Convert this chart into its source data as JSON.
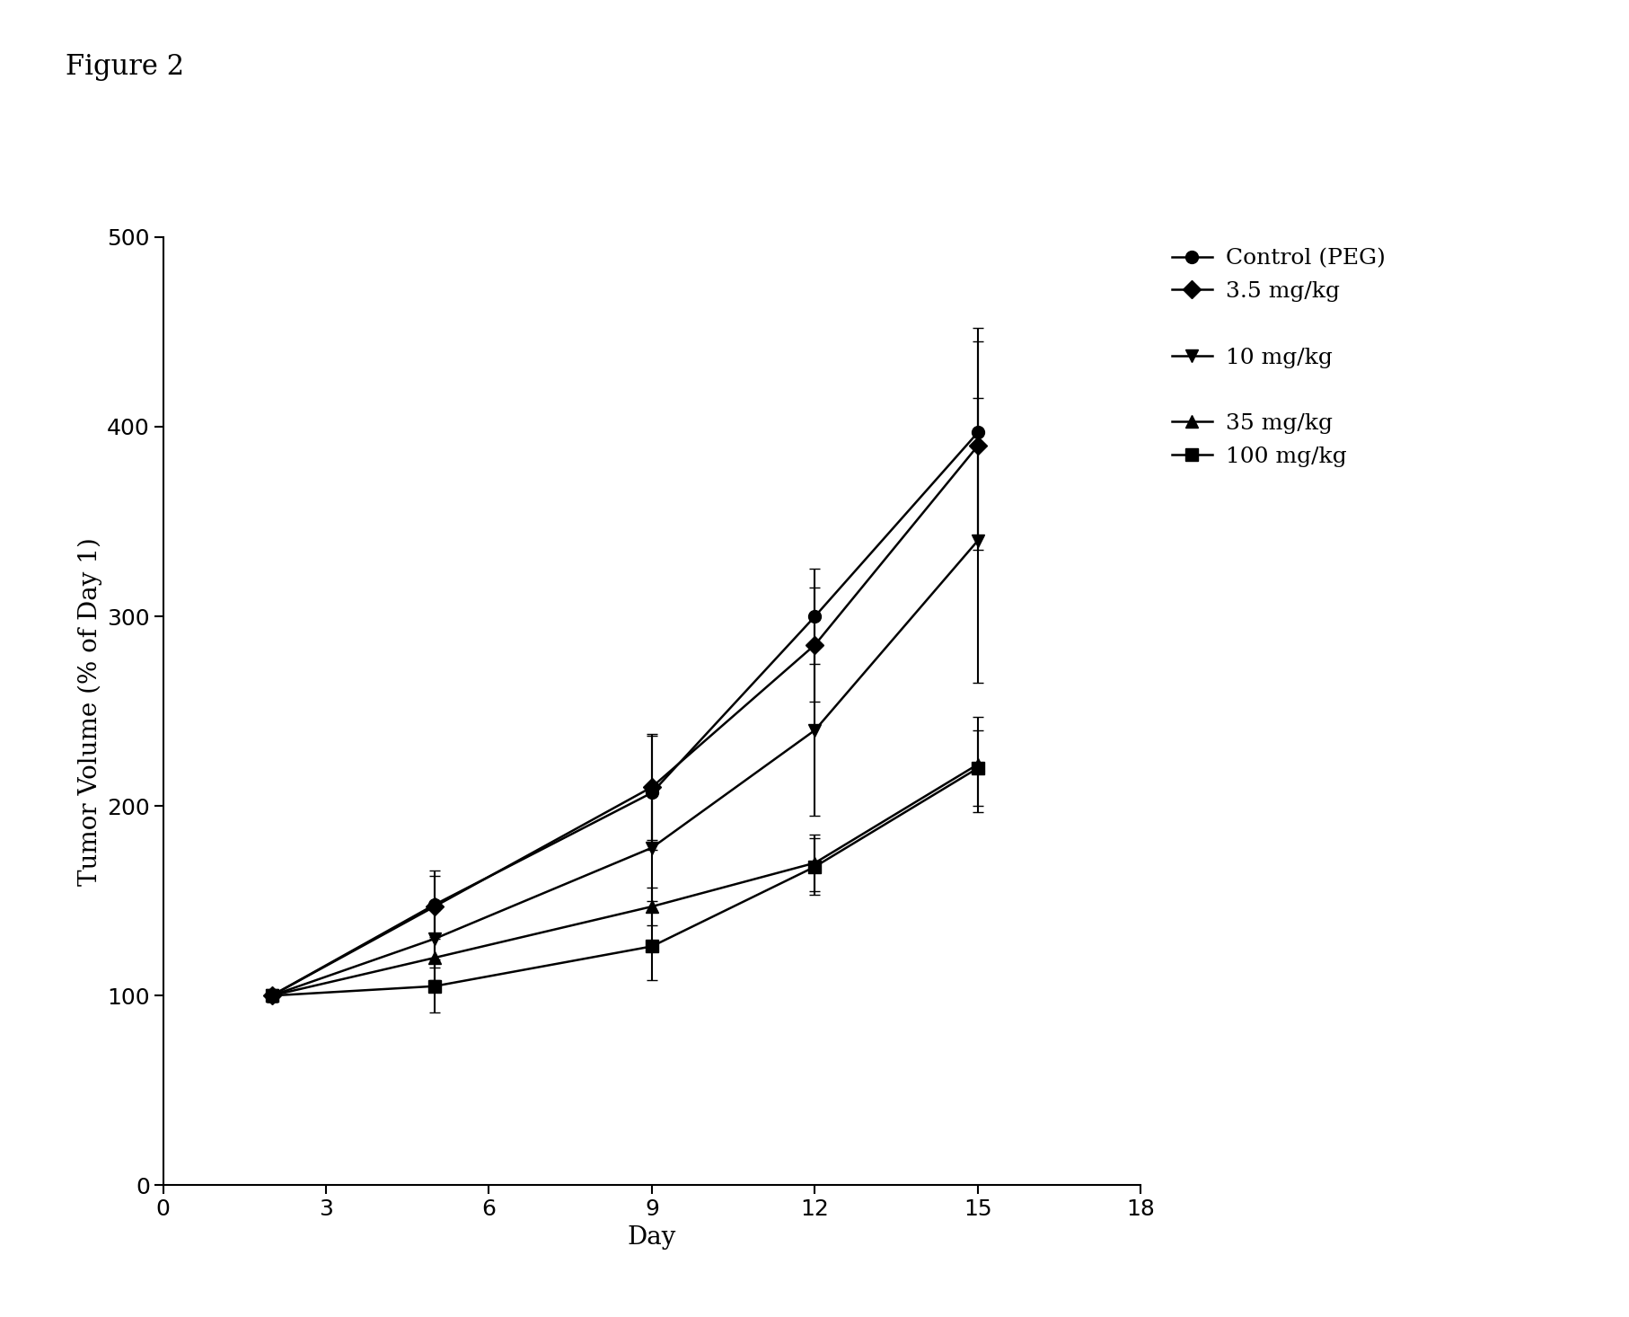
{
  "title": "Figure 2",
  "xlabel": "Day",
  "ylabel": "Tumor Volume (% of Day 1)",
  "xlim": [
    0,
    18
  ],
  "ylim": [
    0,
    500
  ],
  "xticks": [
    0,
    3,
    6,
    9,
    12,
    15,
    18
  ],
  "yticks": [
    0,
    100,
    200,
    300,
    400,
    500
  ],
  "series": [
    {
      "label": "Control (PEG)",
      "marker": "o",
      "x": [
        2,
        5,
        9,
        12,
        15
      ],
      "y": [
        100,
        148,
        207,
        300,
        397
      ],
      "yerr": [
        3,
        18,
        30,
        25,
        55
      ]
    },
    {
      "label": "3.5 mg/kg",
      "marker": "D",
      "x": [
        2,
        5,
        9,
        12,
        15
      ],
      "y": [
        100,
        147,
        210,
        285,
        390
      ],
      "yerr": [
        3,
        16,
        28,
        30,
        55
      ]
    },
    {
      "label": "10 mg/kg",
      "marker": "v",
      "x": [
        2,
        5,
        9,
        12,
        15
      ],
      "y": [
        100,
        130,
        178,
        240,
        340
      ],
      "yerr": [
        3,
        15,
        28,
        45,
        75
      ]
    },
    {
      "label": "35 mg/kg",
      "marker": "^",
      "x": [
        2,
        5,
        9,
        12,
        15
      ],
      "y": [
        100,
        120,
        147,
        170,
        222
      ],
      "yerr": [
        3,
        12,
        10,
        15,
        25
      ]
    },
    {
      "label": "100 mg/kg",
      "marker": "s",
      "x": [
        2,
        5,
        9,
        12,
        15
      ],
      "y": [
        100,
        105,
        126,
        168,
        220
      ],
      "yerr": [
        3,
        14,
        18,
        15,
        20
      ]
    }
  ],
  "line_color": "#000000",
  "bg_color": "#ffffff",
  "markersize": 10,
  "linewidth": 1.8,
  "capsize": 4,
  "elinewidth": 1.5,
  "title_fontsize": 22,
  "label_fontsize": 20,
  "tick_fontsize": 18,
  "legend_fontsize": 18
}
